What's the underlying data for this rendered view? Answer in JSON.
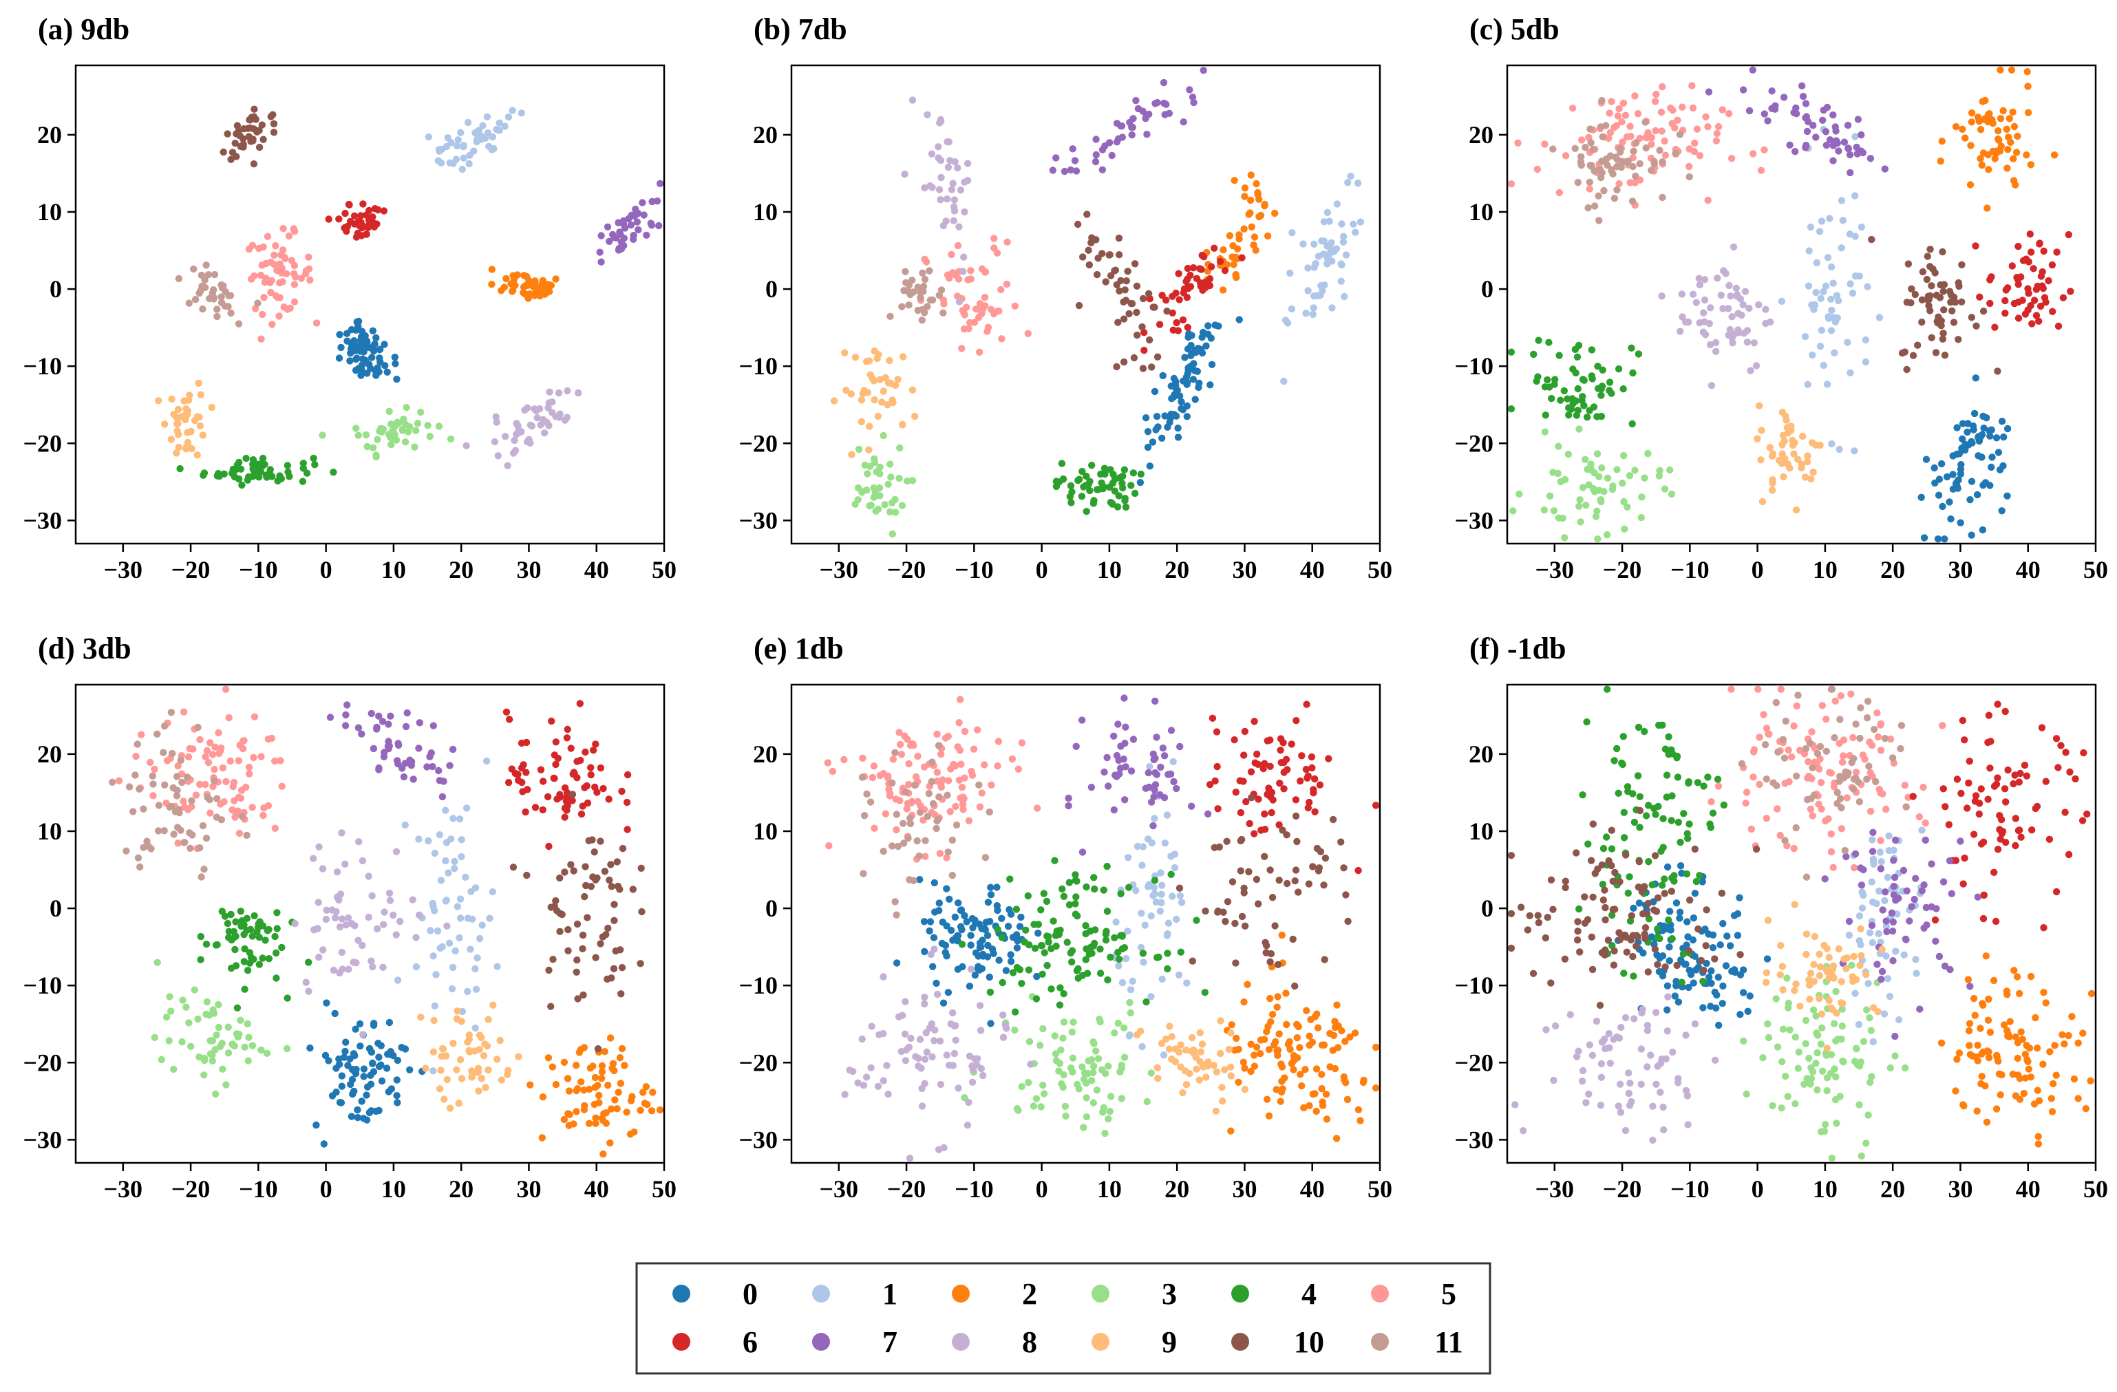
{
  "figure": {
    "legend": {
      "entries": [
        {
          "label": "0",
          "color": "#1f77b4"
        },
        {
          "label": "1",
          "color": "#aec7e8"
        },
        {
          "label": "2",
          "color": "#ff7f0e"
        },
        {
          "label": "3",
          "color": "#98df8a"
        },
        {
          "label": "4",
          "color": "#2ca02c"
        },
        {
          "label": "5",
          "color": "#ff9896"
        },
        {
          "label": "6",
          "color": "#d62728"
        },
        {
          "label": "7",
          "color": "#9467bd"
        },
        {
          "label": "8",
          "color": "#c5b0d5"
        },
        {
          "label": "9",
          "color": "#ffbb78"
        },
        {
          "label": "10",
          "color": "#8c564b"
        },
        {
          "label": "11",
          "color": "#c49c94"
        }
      ]
    }
  },
  "chart_data": [
    {
      "type": "scatter",
      "title": "(a) 9db",
      "xlim": [
        -37,
        50
      ],
      "ylim": [
        -33,
        29
      ],
      "xticks": [
        -30,
        -20,
        -10,
        0,
        10,
        20,
        30,
        40,
        50
      ],
      "yticks": [
        20,
        10,
        0,
        -10,
        -20,
        -30
      ],
      "clusters": [
        {
          "class": "0",
          "center": [
            6,
            -8
          ],
          "spread": [
            1.5,
            2.2
          ],
          "angle": 55,
          "count": 70
        },
        {
          "class": "1",
          "center": [
            21,
            19
          ],
          "spread": [
            1.4,
            3.5
          ],
          "angle": -70,
          "count": 45
        },
        {
          "class": "2",
          "center": [
            30,
            0.5
          ],
          "spread": [
            2.5,
            1.0
          ],
          "angle": -10,
          "count": 45
        },
        {
          "class": "3",
          "center": [
            10,
            -18.5
          ],
          "spread": [
            3,
            1.2
          ],
          "angle": 10,
          "count": 45
        },
        {
          "class": "4",
          "center": [
            -10,
            -23.5
          ],
          "spread": [
            4,
            0.9
          ],
          "angle": 0,
          "count": 55
        },
        {
          "class": "5",
          "center": [
            -7,
            2
          ],
          "spread": [
            2.5,
            2.5
          ],
          "angle": 0,
          "count": 60
        },
        {
          "class": "6",
          "center": [
            5,
            8.5
          ],
          "spread": [
            1.4,
            2
          ],
          "angle": -60,
          "count": 40
        },
        {
          "class": "7",
          "center": [
            44,
            7.5
          ],
          "spread": [
            1.5,
            3
          ],
          "angle": -55,
          "count": 40
        },
        {
          "class": "8",
          "center": [
            30,
            -18
          ],
          "spread": [
            1.5,
            3.5
          ],
          "angle": -55,
          "count": 45
        },
        {
          "class": "9",
          "center": [
            -20.5,
            -17
          ],
          "spread": [
            1.5,
            2.5
          ],
          "angle": 0,
          "count": 40
        },
        {
          "class": "10",
          "center": [
            -11,
            20.5
          ],
          "spread": [
            2.6,
            1.0
          ],
          "angle": 25,
          "count": 40
        },
        {
          "class": "11",
          "center": [
            -17,
            -0.5
          ],
          "spread": [
            2.2,
            1.4
          ],
          "angle": -20,
          "count": 35
        }
      ]
    },
    {
      "type": "scatter",
      "title": "(b) 7db",
      "xlim": [
        -37,
        50
      ],
      "ylim": [
        -33,
        29
      ],
      "xticks": [
        -30,
        -20,
        -10,
        0,
        10,
        20,
        30,
        40,
        50
      ],
      "yticks": [
        20,
        10,
        0,
        -10,
        -20,
        -30
      ],
      "clusters": [
        {
          "class": "0",
          "center": [
            20.5,
            -13
          ],
          "spread": [
            1.5,
            6
          ],
          "angle": -30,
          "count": 80
        },
        {
          "class": "1",
          "center": [
            42,
            4
          ],
          "spread": [
            2,
            6
          ],
          "angle": -20,
          "count": 55
        },
        {
          "class": "2",
          "center": [
            30,
            8
          ],
          "spread": [
            1.5,
            4.5
          ],
          "angle": -25,
          "count": 45
        },
        {
          "class": "3",
          "center": [
            -25,
            -26
          ],
          "spread": [
            2.5,
            3
          ],
          "angle": 0,
          "count": 40
        },
        {
          "class": "4",
          "center": [
            8,
            -25.5
          ],
          "spread": [
            3,
            1.5
          ],
          "angle": 0,
          "count": 55
        },
        {
          "class": "5",
          "center": [
            -10,
            -2
          ],
          "spread": [
            3.5,
            4
          ],
          "angle": 0,
          "count": 55
        },
        {
          "class": "6",
          "center": [
            22,
            0
          ],
          "spread": [
            1.5,
            4
          ],
          "angle": -45,
          "count": 45
        },
        {
          "class": "7",
          "center": [
            13,
            21
          ],
          "spread": [
            1.3,
            6
          ],
          "angle": -60,
          "count": 45
        },
        {
          "class": "8",
          "center": [
            -14,
            14
          ],
          "spread": [
            2,
            5
          ],
          "angle": 10,
          "count": 40
        },
        {
          "class": "9",
          "center": [
            -24,
            -13
          ],
          "spread": [
            3,
            3
          ],
          "angle": 0,
          "count": 40
        },
        {
          "class": "10",
          "center": [
            12,
            0
          ],
          "spread": [
            1.8,
            5
          ],
          "angle": 25,
          "count": 50
        },
        {
          "class": "11",
          "center": [
            -18,
            -1
          ],
          "spread": [
            2,
            1.5
          ],
          "angle": -30,
          "count": 30
        }
      ]
    },
    {
      "type": "scatter",
      "title": "(c) 5db",
      "xlim": [
        -37,
        50
      ],
      "ylim": [
        -33,
        29
      ],
      "xticks": [
        -30,
        -20,
        -10,
        0,
        10,
        20,
        30,
        40,
        50
      ],
      "yticks": [
        20,
        10,
        0,
        -10,
        -20,
        -30
      ],
      "clusters": [
        {
          "class": "0",
          "center": [
            31,
            -23
          ],
          "spread": [
            2.5,
            5
          ],
          "angle": -20,
          "count": 75
        },
        {
          "class": "1",
          "center": [
            11,
            -1
          ],
          "spread": [
            3,
            8
          ],
          "angle": 0,
          "count": 60
        },
        {
          "class": "2",
          "center": [
            35,
            19
          ],
          "spread": [
            3,
            4
          ],
          "angle": 0,
          "count": 60
        },
        {
          "class": "3",
          "center": [
            -24,
            -26
          ],
          "spread": [
            5,
            3
          ],
          "angle": 0,
          "count": 60
        },
        {
          "class": "4",
          "center": [
            -26,
            -12
          ],
          "spread": [
            4,
            3
          ],
          "angle": 0,
          "count": 60
        },
        {
          "class": "5",
          "center": [
            -19,
            19
          ],
          "spread": [
            7,
            3.5
          ],
          "angle": 0,
          "count": 100
        },
        {
          "class": "6",
          "center": [
            40,
            0
          ],
          "spread": [
            3,
            3.5
          ],
          "angle": 0,
          "count": 55
        },
        {
          "class": "7",
          "center": [
            9,
            21
          ],
          "spread": [
            5,
            1.8
          ],
          "angle": -25,
          "count": 55
        },
        {
          "class": "8",
          "center": [
            -5,
            -3
          ],
          "spread": [
            3.5,
            4
          ],
          "angle": 0,
          "count": 60
        },
        {
          "class": "9",
          "center": [
            5,
            -21
          ],
          "spread": [
            2.5,
            3
          ],
          "angle": 0,
          "count": 45
        },
        {
          "class": "10",
          "center": [
            27,
            -2
          ],
          "spread": [
            3,
            4
          ],
          "angle": 0,
          "count": 60
        },
        {
          "class": "11",
          "center": [
            -21,
            17
          ],
          "spread": [
            4,
            3
          ],
          "angle": 0,
          "count": 60
        }
      ]
    },
    {
      "type": "scatter",
      "title": "(d) 3db",
      "xlim": [
        -37,
        50
      ],
      "ylim": [
        -33,
        29
      ],
      "xticks": [
        -30,
        -20,
        -10,
        0,
        10,
        20,
        30,
        40,
        50
      ],
      "yticks": [
        20,
        10,
        0,
        -10,
        -20,
        -30
      ],
      "clusters": [
        {
          "class": "0",
          "center": [
            5,
            -21
          ],
          "spread": [
            3.5,
            4
          ],
          "angle": 0,
          "count": 80
        },
        {
          "class": "1",
          "center": [
            19,
            0
          ],
          "spread": [
            3,
            7
          ],
          "angle": 0,
          "count": 60
        },
        {
          "class": "2",
          "center": [
            40,
            -24
          ],
          "spread": [
            4,
            3.5
          ],
          "angle": 0,
          "count": 75
        },
        {
          "class": "3",
          "center": [
            -17,
            -17
          ],
          "spread": [
            4,
            2.8
          ],
          "angle": 0,
          "count": 55
        },
        {
          "class": "4",
          "center": [
            -12.5,
            -4
          ],
          "spread": [
            3,
            3
          ],
          "angle": 0,
          "count": 60
        },
        {
          "class": "5",
          "center": [
            -17,
            17
          ],
          "spread": [
            6,
            4
          ],
          "angle": 0,
          "count": 90
        },
        {
          "class": "6",
          "center": [
            35,
            17
          ],
          "spread": [
            4,
            4
          ],
          "angle": 0,
          "count": 70
        },
        {
          "class": "7",
          "center": [
            11,
            21
          ],
          "spread": [
            5,
            2
          ],
          "angle": -25,
          "count": 50
        },
        {
          "class": "8",
          "center": [
            5,
            -1
          ],
          "spread": [
            5,
            5
          ],
          "angle": 0,
          "count": 60
        },
        {
          "class": "9",
          "center": [
            21,
            -19
          ],
          "spread": [
            3.5,
            3.5
          ],
          "angle": 0,
          "count": 50
        },
        {
          "class": "10",
          "center": [
            38,
            0
          ],
          "spread": [
            3.5,
            6
          ],
          "angle": 0,
          "count": 65
        },
        {
          "class": "11",
          "center": [
            -22,
            13
          ],
          "spread": [
            4,
            6
          ],
          "angle": 0,
          "count": 60
        }
      ]
    },
    {
      "type": "scatter",
      "title": "(e) 1db",
      "xlim": [
        -37,
        50
      ],
      "ylim": [
        -33,
        29
      ],
      "xticks": [
        -30,
        -20,
        -10,
        0,
        10,
        20,
        30,
        40,
        50
      ],
      "yticks": [
        20,
        10,
        0,
        -10,
        -20,
        -30
      ],
      "clusters": [
        {
          "class": "0",
          "center": [
            -10,
            -4
          ],
          "spread": [
            4,
            3.5
          ],
          "angle": 0,
          "count": 100
        },
        {
          "class": "1",
          "center": [
            17,
            0
          ],
          "spread": [
            3,
            7
          ],
          "angle": 0,
          "count": 60
        },
        {
          "class": "2",
          "center": [
            38,
            -20
          ],
          "spread": [
            6,
            5
          ],
          "angle": 0,
          "count": 110
        },
        {
          "class": "3",
          "center": [
            5,
            -20
          ],
          "spread": [
            6,
            4
          ],
          "angle": 0,
          "count": 80
        },
        {
          "class": "4",
          "center": [
            5,
            -4
          ],
          "spread": [
            6,
            4
          ],
          "angle": 0,
          "count": 110
        },
        {
          "class": "5",
          "center": [
            -17,
            16
          ],
          "spread": [
            6,
            4
          ],
          "angle": 0,
          "count": 110
        },
        {
          "class": "6",
          "center": [
            34,
            17
          ],
          "spread": [
            5,
            4
          ],
          "angle": 0,
          "count": 70
        },
        {
          "class": "7",
          "center": [
            15,
            18
          ],
          "spread": [
            4,
            4
          ],
          "angle": 0,
          "count": 55
        },
        {
          "class": "8",
          "center": [
            -17,
            -19
          ],
          "spread": [
            6,
            5
          ],
          "angle": 0,
          "count": 80
        },
        {
          "class": "9",
          "center": [
            22,
            -20
          ],
          "spread": [
            3.5,
            3
          ],
          "angle": 0,
          "count": 50
        },
        {
          "class": "10",
          "center": [
            34,
            2
          ],
          "spread": [
            6,
            5
          ],
          "angle": 0,
          "count": 60
        },
        {
          "class": "11",
          "center": [
            -18,
            10
          ],
          "spread": [
            4,
            5
          ],
          "angle": 0,
          "count": 45
        }
      ]
    },
    {
      "type": "scatter",
      "title": "(f) -1db",
      "xlim": [
        -37,
        50
      ],
      "ylim": [
        -33,
        29
      ],
      "xticks": [
        -30,
        -20,
        -10,
        0,
        10,
        20,
        30,
        40,
        50
      ],
      "yticks": [
        20,
        10,
        0,
        -10,
        -20,
        -30
      ],
      "clusters": [
        {
          "class": "0",
          "center": [
            -10,
            -5
          ],
          "spread": [
            4,
            5
          ],
          "angle": 30,
          "count": 110
        },
        {
          "class": "1",
          "center": [
            19,
            -1
          ],
          "spread": [
            3,
            6
          ],
          "angle": 0,
          "count": 60
        },
        {
          "class": "2",
          "center": [
            38,
            -18
          ],
          "spread": [
            5,
            5
          ],
          "angle": 0,
          "count": 100
        },
        {
          "class": "3",
          "center": [
            10,
            -19
          ],
          "spread": [
            5,
            6
          ],
          "angle": 0,
          "count": 90
        },
        {
          "class": "4",
          "center": [
            -16,
            10
          ],
          "spread": [
            5,
            9
          ],
          "angle": 0,
          "count": 100
        },
        {
          "class": "5",
          "center": [
            8,
            17
          ],
          "spread": [
            8,
            5
          ],
          "angle": 0,
          "count": 110
        },
        {
          "class": "6",
          "center": [
            36,
            13
          ],
          "spread": [
            6,
            6
          ],
          "angle": 0,
          "count": 80
        },
        {
          "class": "7",
          "center": [
            22,
            0
          ],
          "spread": [
            5,
            5
          ],
          "angle": 0,
          "count": 60
        },
        {
          "class": "8",
          "center": [
            -18,
            -20
          ],
          "spread": [
            7,
            5
          ],
          "angle": 0,
          "count": 70
        },
        {
          "class": "9",
          "center": [
            10,
            -8
          ],
          "spread": [
            4,
            3
          ],
          "angle": 0,
          "count": 60
        },
        {
          "class": "10",
          "center": [
            -20,
            -1
          ],
          "spread": [
            8,
            5
          ],
          "angle": 0,
          "count": 100
        },
        {
          "class": "11",
          "center": [
            12,
            18
          ],
          "spread": [
            6,
            5
          ],
          "angle": 0,
          "count": 60
        }
      ]
    }
  ]
}
